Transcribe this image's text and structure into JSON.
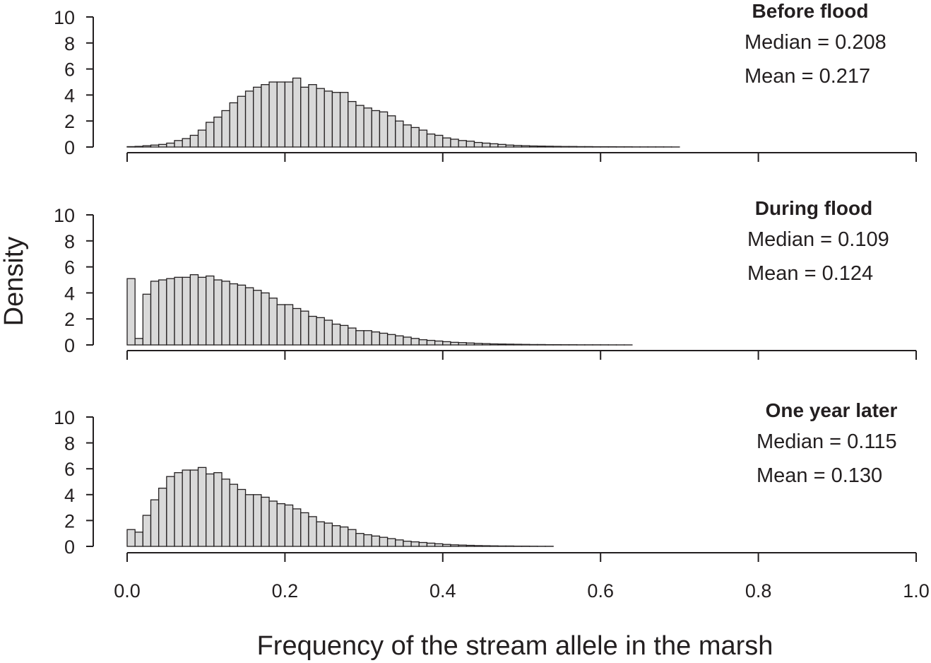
{
  "chart_data": [
    {
      "type": "bar",
      "title": "Before flood",
      "annotations": [
        "Median = 0.208",
        "Mean = 0.217"
      ],
      "ylabel": "Density",
      "xlabel": "Frequency of the stream allele in the marsh",
      "ylim": [
        0,
        10
      ],
      "yticks": [
        "0",
        "2",
        "4",
        "6",
        "8",
        "10"
      ],
      "xlim": [
        0,
        1
      ],
      "xticks": [
        "0.0",
        "0.2",
        "0.4",
        "0.6",
        "0.8",
        "1.0"
      ],
      "bin_width": 0.01,
      "bin_start": 0.0,
      "values": [
        0.03,
        0.05,
        0.1,
        0.15,
        0.2,
        0.3,
        0.5,
        0.65,
        0.9,
        1.3,
        1.9,
        2.3,
        2.8,
        3.4,
        3.9,
        4.3,
        4.6,
        4.8,
        5.0,
        5.0,
        5.0,
        5.3,
        4.6,
        4.8,
        4.5,
        4.3,
        4.2,
        4.2,
        3.5,
        3.2,
        3.0,
        2.8,
        2.7,
        2.4,
        2.0,
        1.7,
        1.5,
        1.3,
        1.0,
        0.9,
        0.7,
        0.6,
        0.5,
        0.45,
        0.35,
        0.3,
        0.25,
        0.2,
        0.15,
        0.12,
        0.1,
        0.08,
        0.07,
        0.06,
        0.05,
        0.04,
        0.04,
        0.03,
        0.03,
        0.02,
        0.02,
        0.02,
        0.015,
        0.015,
        0.01,
        0.01,
        0.01,
        0.01,
        0.008,
        0.005
      ]
    },
    {
      "type": "bar",
      "title": "During flood",
      "annotations": [
        "Median = 0.109",
        "Mean = 0.124"
      ],
      "ylim": [
        0,
        10
      ],
      "yticks": [
        "0",
        "2",
        "4",
        "6",
        "8",
        "10"
      ],
      "xlim": [
        0,
        1
      ],
      "bin_width": 0.01,
      "bin_start": 0.0,
      "values": [
        5.1,
        0.5,
        3.9,
        4.9,
        5.0,
        5.1,
        5.2,
        5.2,
        5.4,
        5.2,
        5.3,
        5.0,
        4.9,
        4.7,
        4.6,
        4.4,
        4.2,
        4.0,
        3.6,
        3.1,
        3.1,
        2.8,
        2.6,
        2.2,
        2.1,
        1.9,
        1.6,
        1.5,
        1.3,
        1.1,
        1.1,
        1.0,
        0.9,
        0.8,
        0.7,
        0.6,
        0.5,
        0.4,
        0.35,
        0.3,
        0.25,
        0.2,
        0.18,
        0.15,
        0.12,
        0.1,
        0.08,
        0.07,
        0.06,
        0.05,
        0.04,
        0.03,
        0.03,
        0.02,
        0.02,
        0.015,
        0.015,
        0.01,
        0.01,
        0.01,
        0.008,
        0.006,
        0.005,
        0.004
      ]
    },
    {
      "type": "bar",
      "title": "One year later",
      "annotations": [
        "Median = 0.115",
        "Mean = 0.130"
      ],
      "ylim": [
        0,
        10
      ],
      "yticks": [
        "0",
        "2",
        "4",
        "6",
        "8",
        "10"
      ],
      "xlim": [
        0,
        1
      ],
      "bin_width": 0.01,
      "bin_start": 0.0,
      "values": [
        1.3,
        1.1,
        2.4,
        3.6,
        4.5,
        5.4,
        5.7,
        5.9,
        5.9,
        6.1,
        5.6,
        5.7,
        5.2,
        4.8,
        4.4,
        4.0,
        4.0,
        3.8,
        3.5,
        3.3,
        3.2,
        2.9,
        2.6,
        2.3,
        1.9,
        1.8,
        1.6,
        1.5,
        1.3,
        1.0,
        0.9,
        0.8,
        0.7,
        0.6,
        0.5,
        0.4,
        0.35,
        0.3,
        0.25,
        0.2,
        0.15,
        0.12,
        0.1,
        0.08,
        0.06,
        0.05,
        0.04,
        0.03,
        0.03,
        0.02,
        0.02,
        0.015,
        0.01,
        0.01
      ]
    }
  ]
}
